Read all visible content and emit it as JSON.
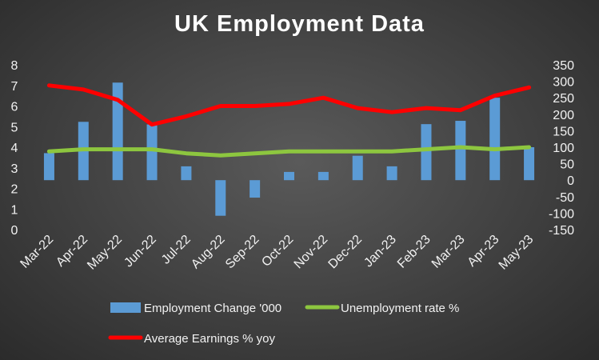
{
  "chart_data": {
    "type": "bar",
    "title": "UK Employment Data",
    "categories": [
      "Mar-22",
      "Apr-22",
      "May-22",
      "Jun-22",
      "Jul-22",
      "Aug-22",
      "Sep-22",
      "Oct-22",
      "Nov-22",
      "Dec-22",
      "Jan-23",
      "Feb-23",
      "Mar-23",
      "Apr-23",
      "May-23"
    ],
    "series": [
      {
        "name": "Employment Change '000",
        "type": "bar",
        "axis": "right",
        "color": "#5b9bd5",
        "values": [
          82,
          177,
          296,
          169,
          42,
          -108,
          -53,
          25,
          25,
          74,
          42,
          170,
          180,
          250,
          100
        ]
      },
      {
        "name": "Unemployment rate %",
        "type": "line",
        "axis": "left",
        "color": "#8dc63f",
        "values": [
          3.8,
          3.9,
          3.9,
          3.9,
          3.7,
          3.6,
          3.7,
          3.8,
          3.8,
          3.8,
          3.8,
          3.9,
          4.0,
          3.9,
          4.0
        ]
      },
      {
        "name": "Average Earnings % yoy",
        "type": "line",
        "axis": "left",
        "color": "#ff0000",
        "values": [
          7.0,
          6.8,
          6.3,
          5.1,
          5.5,
          6.0,
          6.0,
          6.1,
          6.4,
          5.9,
          5.7,
          5.9,
          5.8,
          6.5,
          6.9
        ]
      }
    ],
    "y_left": {
      "ylim": [
        0,
        8
      ],
      "ticks": [
        0,
        1,
        2,
        3,
        4,
        5,
        6,
        7,
        8
      ]
    },
    "y_right": {
      "ylim": [
        -150,
        350
      ],
      "ticks": [
        -150,
        -100,
        -50,
        0,
        50,
        100,
        150,
        200,
        250,
        300,
        350
      ]
    },
    "grid": false,
    "legend_position": "bottom"
  }
}
